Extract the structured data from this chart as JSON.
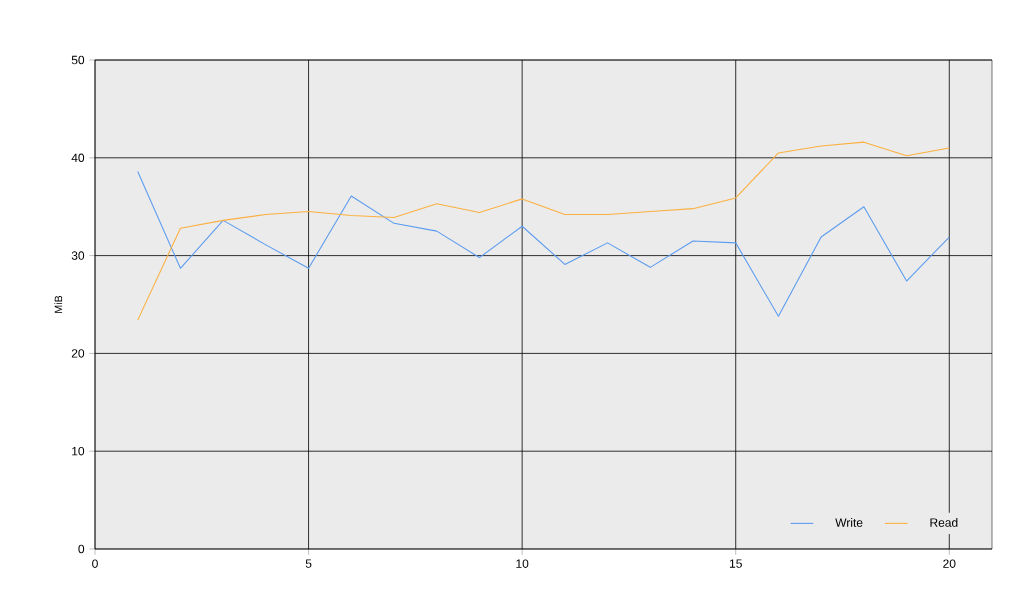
{
  "chart_data": {
    "type": "line",
    "ylabel": "MiB",
    "x": [
      1,
      2,
      3,
      4,
      5,
      6,
      7,
      8,
      9,
      10,
      11,
      12,
      13,
      14,
      15,
      16,
      17,
      18,
      19,
      20
    ],
    "series": [
      {
        "name": "Write",
        "color": "#5b9bf0",
        "values": [
          38.6,
          28.7,
          33.6,
          31.1,
          28.7,
          36.1,
          33.3,
          32.5,
          29.8,
          33.0,
          29.1,
          31.3,
          28.8,
          31.5,
          31.3,
          23.8,
          31.9,
          35.0,
          27.4,
          31.9
        ]
      },
      {
        "name": "Read",
        "color": "#fbb040",
        "values": [
          23.4,
          32.8,
          33.6,
          34.2,
          34.5,
          34.1,
          33.9,
          35.3,
          34.4,
          35.8,
          34.2,
          34.2,
          34.5,
          34.8,
          35.9,
          40.5,
          41.2,
          41.6,
          40.2,
          41.0
        ]
      }
    ],
    "xlim": [
      0,
      21
    ],
    "ylim": [
      0,
      50
    ],
    "xticks": [
      0,
      5,
      10,
      15,
      20
    ],
    "yticks": [
      0,
      10,
      20,
      30,
      40,
      50
    ],
    "grid": true,
    "legend": "bottom right",
    "marker": "none",
    "line_style": "solid"
  }
}
